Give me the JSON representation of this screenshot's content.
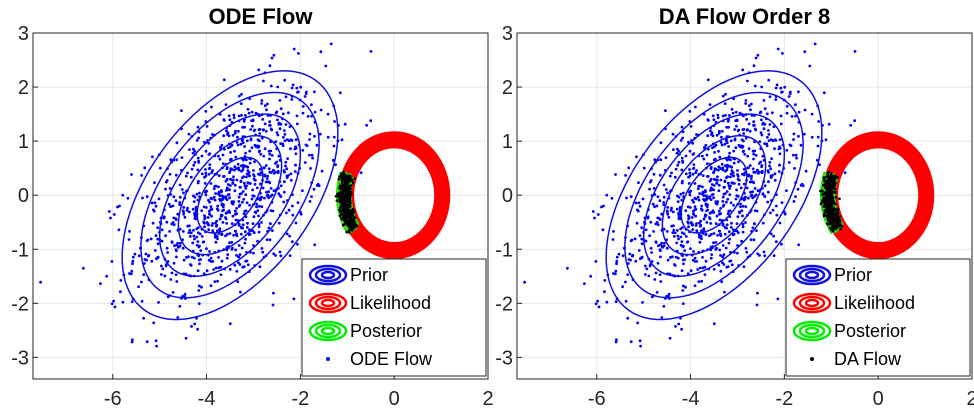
{
  "chart_data": [
    {
      "type": "scatter",
      "title": "ODE Flow",
      "xlim": [
        -7.7,
        2
      ],
      "ylim": [
        -3.4,
        3
      ],
      "xticks": [
        -6,
        -4,
        -2,
        0,
        2
      ],
      "yticks": [
        3,
        2,
        1,
        0,
        -1,
        -2,
        -3
      ],
      "xtick_labels": [
        "-6",
        "-4",
        "-2",
        "0",
        "2"
      ],
      "ytick_labels": [
        "3",
        "2",
        "1",
        "0",
        "-1",
        "-2",
        "-3"
      ],
      "grid": true,
      "legend_location": "bottom-right",
      "prior": {
        "center": [
          -3.5,
          0.0
        ],
        "sigma_x": 1.0,
        "sigma_y": 1.0,
        "correlation": 0.5,
        "contour_scales": [
          0.7,
          1.1,
          1.5,
          1.9,
          2.3
        ],
        "color": "#1010e0"
      },
      "likelihood": {
        "center": [
          0.0,
          0.0
        ],
        "ring_radii": [
          1.1,
          0.95
        ],
        "color": "#ff0000"
      },
      "posterior": {
        "center": [
          -1.0,
          0.2
        ],
        "arc_range_deg": [
          160,
          215
        ],
        "color": "#00ee00"
      },
      "flow_particles": {
        "n_prior_samples": 1000,
        "n_flow_points": 500,
        "color": "#0000ff",
        "flow_color": "#000000"
      },
      "legend": [
        {
          "label": "Prior",
          "kind": "contour",
          "color": "#1010e0"
        },
        {
          "label": "Likelihood",
          "kind": "contour",
          "color": "#ff0000"
        },
        {
          "label": "Posterior",
          "kind": "contour",
          "color": "#00ee00"
        },
        {
          "label": "ODE Flow",
          "kind": "dot",
          "color": "#0000ff"
        }
      ]
    },
    {
      "type": "scatter",
      "title": "DA Flow Order 8",
      "xlim": [
        -7.7,
        2
      ],
      "ylim": [
        -3.4,
        3
      ],
      "xticks": [
        -6,
        -4,
        -2,
        0,
        2
      ],
      "yticks": [
        3,
        2,
        1,
        0,
        -1,
        -2,
        -3
      ],
      "xtick_labels": [
        "-6",
        "-4",
        "-2",
        "0",
        "2"
      ],
      "ytick_labels": [
        "3",
        "2",
        "1",
        "0",
        "-1",
        "-2",
        "-3"
      ],
      "grid": true,
      "legend_location": "bottom-right",
      "prior": {
        "center": [
          -3.5,
          0.0
        ],
        "sigma_x": 1.0,
        "sigma_y": 1.0,
        "correlation": 0.5,
        "contour_scales": [
          0.7,
          1.1,
          1.5,
          1.9,
          2.3
        ],
        "color": "#1010e0"
      },
      "likelihood": {
        "center": [
          0.0,
          0.0
        ],
        "ring_radii": [
          1.1,
          0.95
        ],
        "color": "#ff0000"
      },
      "posterior": {
        "center": [
          -1.0,
          0.2
        ],
        "arc_range_deg": [
          160,
          215
        ],
        "color": "#00ee00"
      },
      "flow_particles": {
        "n_prior_samples": 1000,
        "n_flow_points": 500,
        "color": "#0000ff",
        "flow_color": "#000000"
      },
      "legend": [
        {
          "label": "Prior",
          "kind": "contour",
          "color": "#1010e0"
        },
        {
          "label": "Likelihood",
          "kind": "contour",
          "color": "#ff0000"
        },
        {
          "label": "Posterior",
          "kind": "contour",
          "color": "#00ee00"
        },
        {
          "label": "DA Flow",
          "kind": "dot",
          "color": "#000000"
        }
      ]
    }
  ]
}
